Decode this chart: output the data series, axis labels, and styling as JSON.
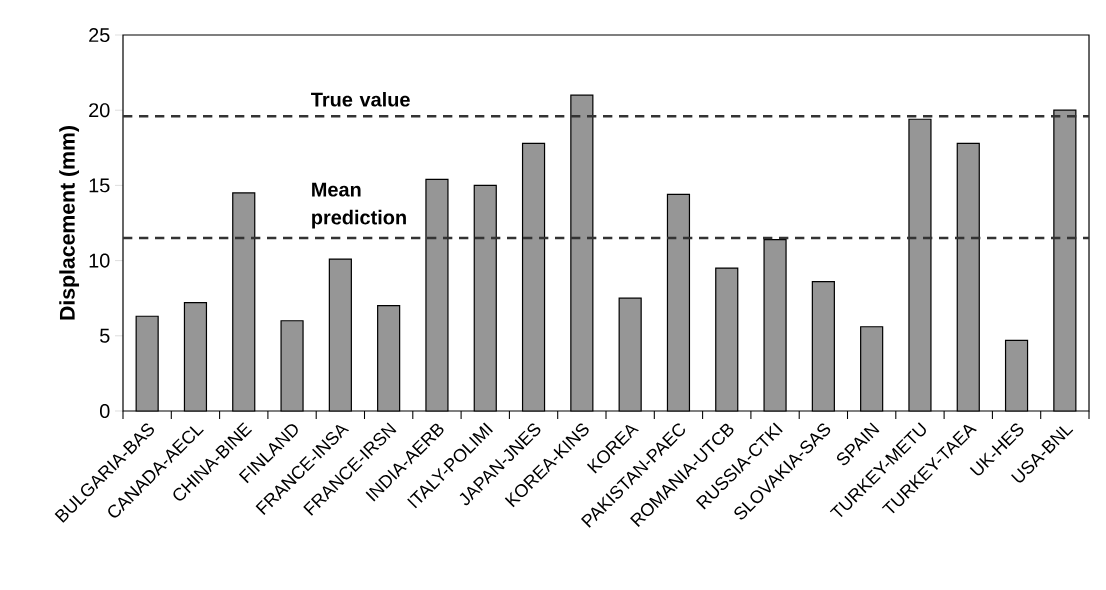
{
  "chart_data": {
    "type": "bar",
    "ylabel": "Displacement (mm)",
    "categories": [
      "BULGARIA-BAS",
      "CANADA-AECL",
      "CHINA-BINE",
      "FINLAND",
      "FRANCE-INSA",
      "FRANCE-IRSN",
      "INDIA-AERB",
      "ITALY-POLIMI",
      "JAPAN-JNES",
      "KOREA-KINS",
      "KOREA",
      "PAKISTAN-PAEC",
      "ROMANIA-UTCB",
      "RUSSIA-CTKI",
      "SLOVAKIA-SAS",
      "SPAIN",
      "TURKEY-METU",
      "TURKEY-TAEA",
      "UK-HES",
      "USA-BNL"
    ],
    "values": [
      6.3,
      7.2,
      14.5,
      6.0,
      10.1,
      7.0,
      15.4,
      15.0,
      17.8,
      21.0,
      7.5,
      14.4,
      9.5,
      11.4,
      8.6,
      5.6,
      19.4,
      17.8,
      4.7,
      20.0
    ],
    "color": "#969696",
    "ylim": [
      0,
      25
    ],
    "yticks": [
      0,
      5,
      10,
      15,
      20,
      25
    ],
    "ref_lines": [
      {
        "axis": "y",
        "value": 19.6,
        "label": "True value",
        "color": "#333333",
        "line_style": "dashed"
      },
      {
        "axis": "y",
        "value": 11.5,
        "label": "Mean prediction",
        "color": "#333333",
        "line_style": "dashed"
      }
    ]
  }
}
